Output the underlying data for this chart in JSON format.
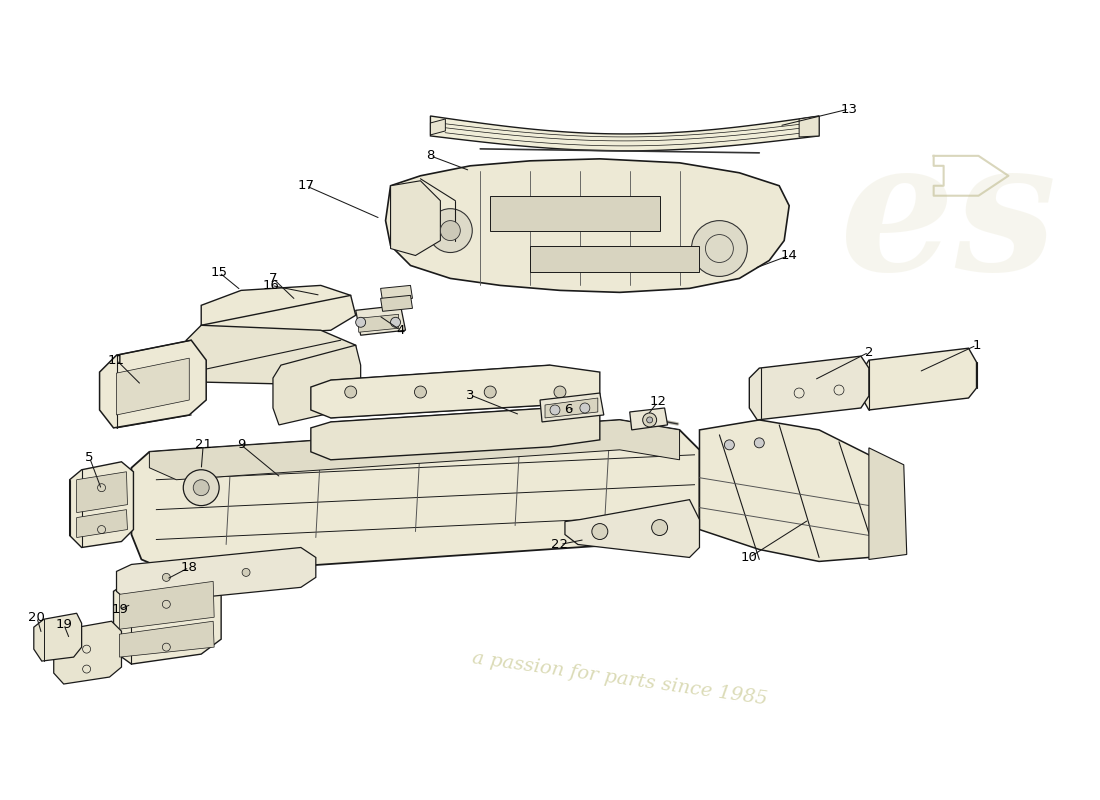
{
  "bg_color": "#ffffff",
  "line_color": "#1a1a1a",
  "part_fill": "#f5f2e8",
  "part_fill2": "#eae6d5",
  "part_edge": "#1a1a1a",
  "watermark_text1": "a passion for parts since 1985",
  "label_color": "#000000",
  "label_fontsize": 9.5,
  "fig_width": 11.0,
  "fig_height": 8.0,
  "dpi": 100
}
